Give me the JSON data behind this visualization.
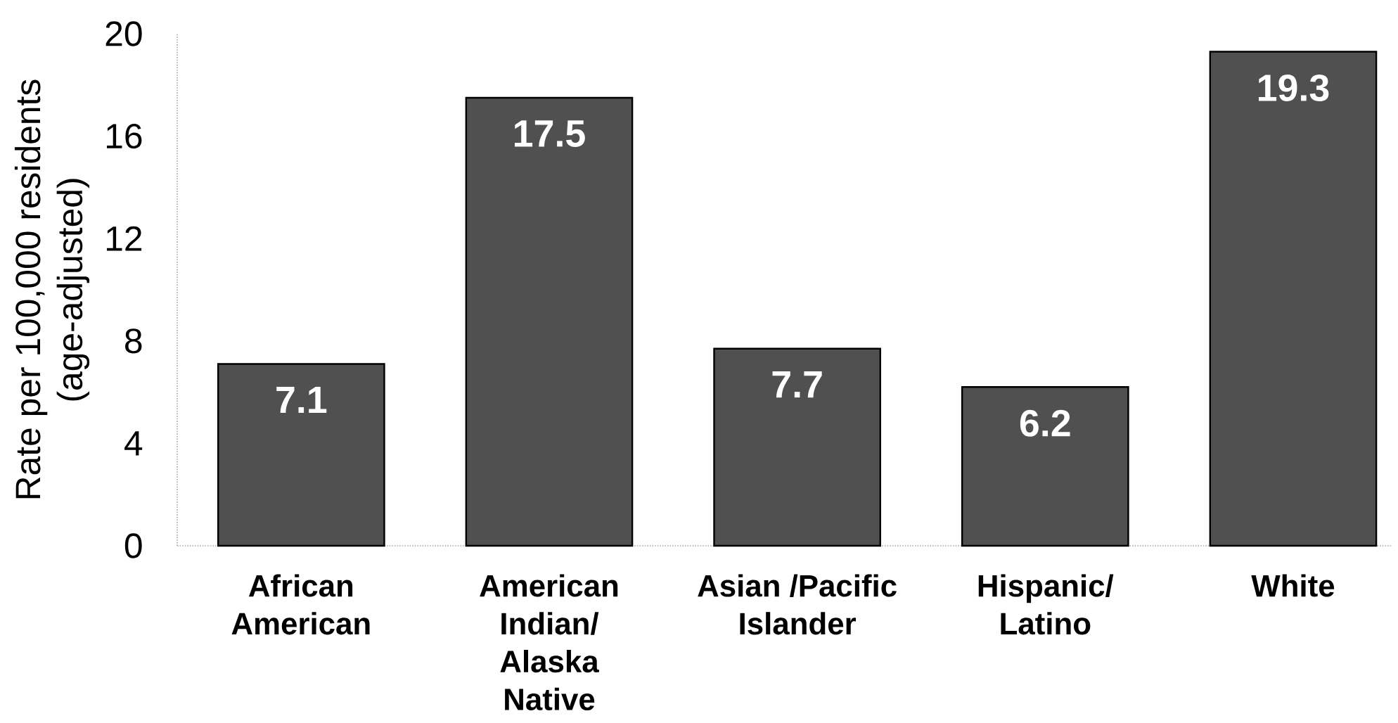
{
  "chart_data": {
    "type": "bar",
    "ylabel": "Rate per 100,000 residents\n(age-adjusted)",
    "categories": [
      "African\nAmerican",
      "American\nIndian/\nAlaska\nNative",
      "Asian /Pacific\nIslander",
      "Hispanic/\nLatino",
      "White"
    ],
    "values": [
      7.1,
      17.5,
      7.7,
      6.2,
      19.3
    ],
    "color": "#505050",
    "ylim": [
      0,
      20
    ],
    "yticks": [
      0,
      4,
      8,
      12,
      16,
      20
    ],
    "data_labels": true
  }
}
